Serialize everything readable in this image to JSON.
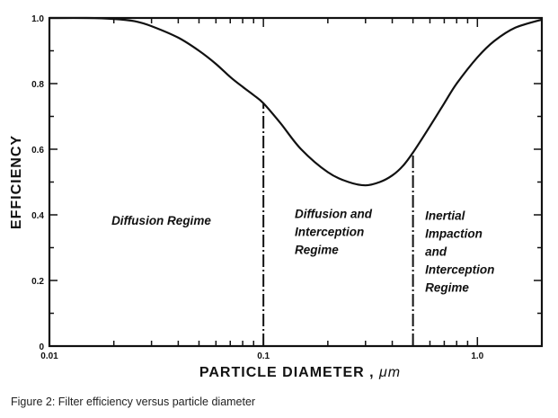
{
  "chart_data": {
    "type": "line",
    "title": "",
    "xlabel_text": "PARTICLE DIAMETER ,",
    "xlabel_unit": "μm",
    "ylabel": "EFFICIENCY",
    "xscale": "log",
    "xlim": [
      0.01,
      2.0
    ],
    "ylim": [
      0,
      1.0
    ],
    "x_ticks": [
      {
        "value": 0.01,
        "label": "0.01"
      },
      {
        "value": 0.1,
        "label": "0.1"
      },
      {
        "value": 1.0,
        "label": "1.0"
      }
    ],
    "y_ticks": [
      {
        "value": 0,
        "label": "0"
      },
      {
        "value": 0.2,
        "label": "0.2"
      },
      {
        "value": 0.4,
        "label": "0.4"
      },
      {
        "value": 0.6,
        "label": "0.6"
      },
      {
        "value": 0.8,
        "label": "0.8"
      },
      {
        "value": 1.0,
        "label": "1.0"
      }
    ],
    "series": [
      {
        "name": "Filter efficiency",
        "x": [
          0.01,
          0.015,
          0.02,
          0.025,
          0.03,
          0.04,
          0.05,
          0.06,
          0.07,
          0.08,
          0.09,
          0.1,
          0.12,
          0.15,
          0.2,
          0.25,
          0.3,
          0.35,
          0.4,
          0.45,
          0.5,
          0.6,
          0.7,
          0.8,
          1.0,
          1.2,
          1.5,
          2.0
        ],
        "y": [
          1.0,
          1.0,
          0.997,
          0.99,
          0.975,
          0.94,
          0.9,
          0.86,
          0.82,
          0.79,
          0.765,
          0.74,
          0.68,
          0.6,
          0.53,
          0.5,
          0.49,
          0.5,
          0.52,
          0.55,
          0.59,
          0.67,
          0.74,
          0.8,
          0.88,
          0.93,
          0.97,
          0.995
        ]
      }
    ],
    "boundaries": [
      0.1,
      0.5
    ],
    "regions": [
      {
        "name": "diffusion",
        "lines": [
          "Diffusion Regime"
        ]
      },
      {
        "name": "diffusion-interception",
        "lines": [
          "Diffusion and",
          "Interception",
          "Regime"
        ]
      },
      {
        "name": "inertial-impaction",
        "lines": [
          "Inertial",
          "Impaction",
          "and",
          "Interception",
          "Regime"
        ]
      }
    ]
  },
  "caption": "Figure 2: Filter efficiency versus particle diameter"
}
